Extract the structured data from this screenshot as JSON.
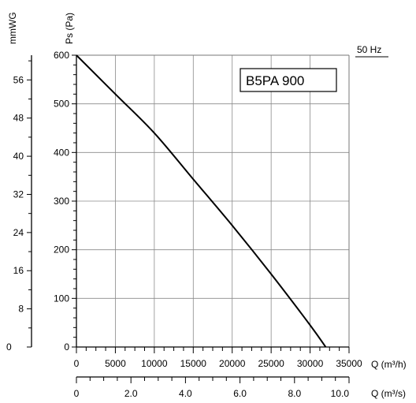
{
  "chart_data": {
    "type": "line",
    "model_label": "B5PA 900",
    "frequency_label": "50 Hz",
    "left_axis_title": "mmWG",
    "y_axis_title": "Ps (Pa)",
    "x_axis_title_top": "Q (m³/h)",
    "x_axis_title_bottom": "Q (m³/s)",
    "grid": true,
    "ylim": [
      0,
      600
    ],
    "xlim_m3h": [
      0,
      35000
    ],
    "xlim_m3s": [
      0,
      10.0
    ],
    "y_ticks": [
      "0",
      "100",
      "200",
      "300",
      "400",
      "500",
      "600"
    ],
    "mmwg_ticks": [
      "0",
      "8",
      "16",
      "24",
      "32",
      "40",
      "48",
      "56"
    ],
    "x_ticks_m3h": [
      "0",
      "5000",
      "10000",
      "15000",
      "20000",
      "25000",
      "30000",
      "35000"
    ],
    "x_ticks_m3s": [
      "0",
      "2.0",
      "4.0",
      "6.0",
      "8.0",
      "10.0"
    ],
    "series": [
      {
        "x": [
          0,
          5000,
          10000,
          15000,
          20000,
          25000,
          30000,
          32000
        ],
        "y": [
          600,
          520,
          440,
          345,
          250,
          150,
          45,
          0
        ]
      }
    ]
  }
}
